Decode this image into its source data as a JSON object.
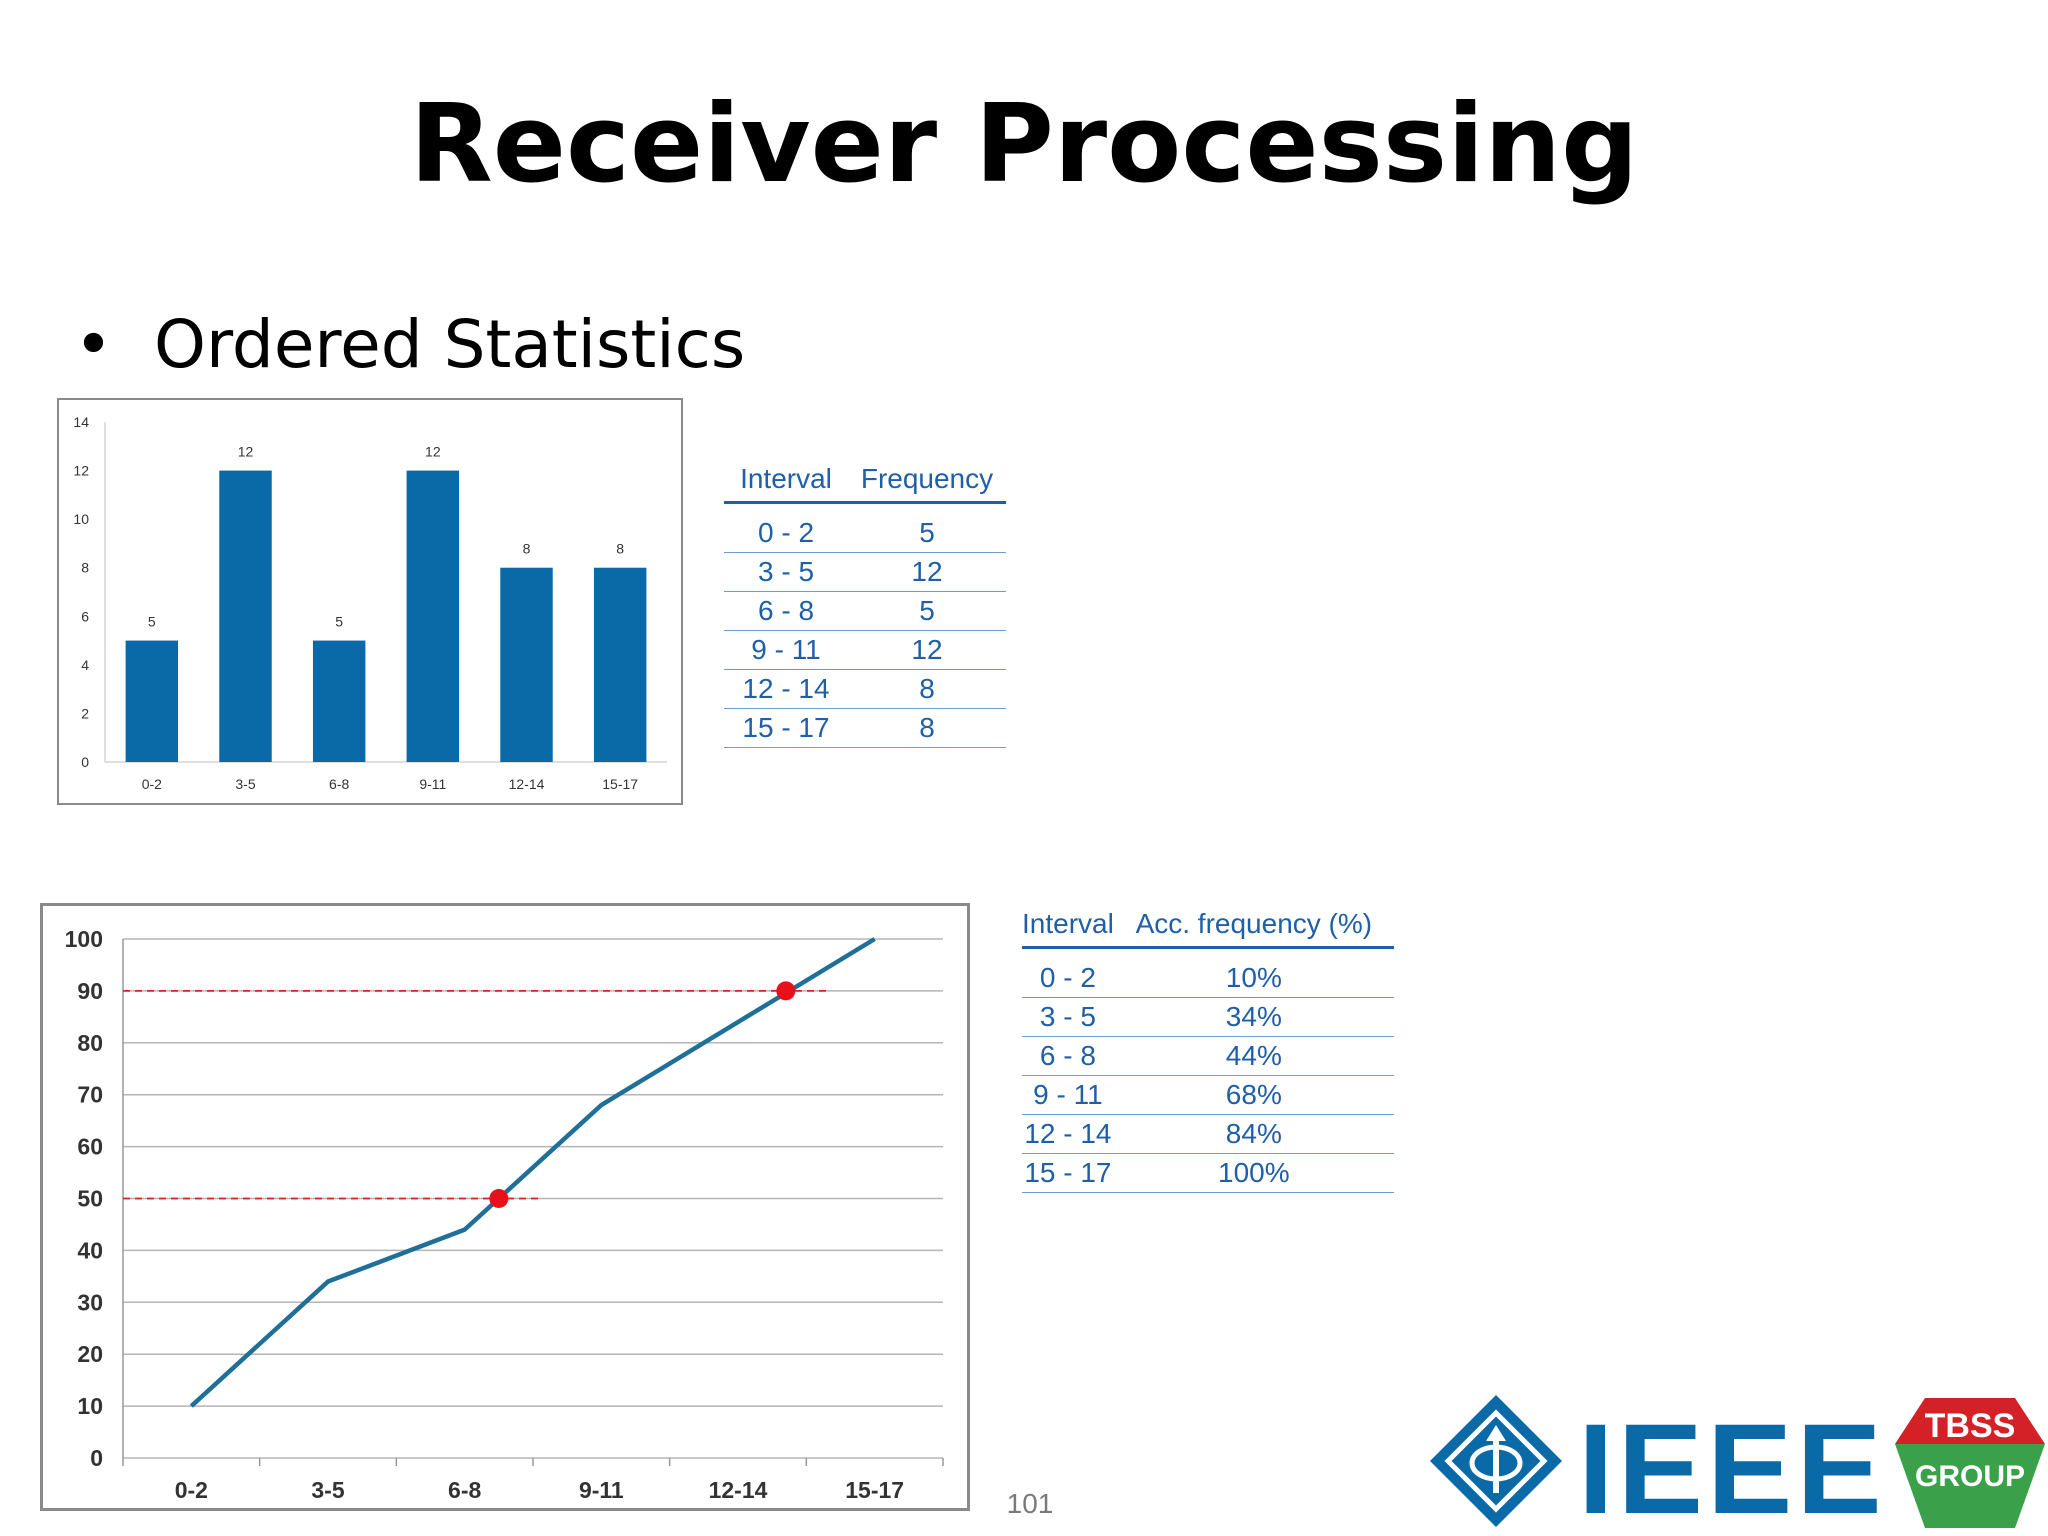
{
  "title": "Receiver Processing",
  "bullet": {
    "symbol": "•",
    "text": "Ordered Statistics"
  },
  "freq_table": {
    "headers": [
      "Interval",
      "Frequency"
    ],
    "rows": [
      [
        "0 - 2",
        "5"
      ],
      [
        "3 - 5",
        "12"
      ],
      [
        "6 - 8",
        "5"
      ],
      [
        "9 - 11",
        "12"
      ],
      [
        "12 - 14",
        "8"
      ],
      [
        "15 - 17",
        "8"
      ]
    ]
  },
  "acc_table": {
    "headers": [
      "Interval",
      "Acc. frequency (%)"
    ],
    "rows": [
      [
        "0 - 2",
        "10%"
      ],
      [
        "3 - 5",
        "34%"
      ],
      [
        "6 - 8",
        "44%"
      ],
      [
        "9 - 11",
        "68%"
      ],
      [
        "12 - 14",
        "84%"
      ],
      [
        "15 - 17",
        "100%"
      ]
    ]
  },
  "page_number": "101",
  "logos": {
    "ieee_text": "IEEE",
    "tbss_line1": "TBSS",
    "tbss_line2": "GROUP"
  },
  "colors": {
    "bar": "#0a6aa8",
    "line": "#1f6f99",
    "marker": "#e8101a",
    "guide": "#e02020",
    "table_text": "#1f5fa8",
    "ieee_blue": "#0a6aa8",
    "tbss_red": "#d42027",
    "tbss_green": "#3aa04a"
  },
  "chart_data": [
    {
      "type": "bar",
      "categories": [
        "0-2",
        "3-5",
        "6-8",
        "9-11",
        "12-14",
        "15-17"
      ],
      "values": [
        5,
        12,
        5,
        12,
        8,
        8
      ],
      "data_labels": [
        "5",
        "12",
        "5",
        "12",
        "8",
        "8"
      ],
      "yticks": [
        "0",
        "2",
        "4",
        "6",
        "8",
        "10",
        "12",
        "14"
      ],
      "ylim": [
        0,
        14
      ],
      "grid": false,
      "legend": "none"
    },
    {
      "type": "line",
      "categories": [
        "0-2",
        "3-5",
        "6-8",
        "9-11",
        "12-14",
        "15-17"
      ],
      "values": [
        10,
        34,
        44,
        68,
        84,
        100
      ],
      "yticks": [
        "0",
        "10",
        "20",
        "30",
        "40",
        "50",
        "60",
        "70",
        "80",
        "90",
        "100"
      ],
      "ylim": [
        0,
        100
      ],
      "grid": true,
      "legend": "none",
      "markers": [
        {
          "x": 2.25,
          "y": 50
        },
        {
          "x": 4.35,
          "y": 90
        }
      ],
      "guide_lines": [
        {
          "y": 50,
          "x_end": 2.55
        },
        {
          "y": 90,
          "x_end": 4.65
        }
      ]
    }
  ]
}
